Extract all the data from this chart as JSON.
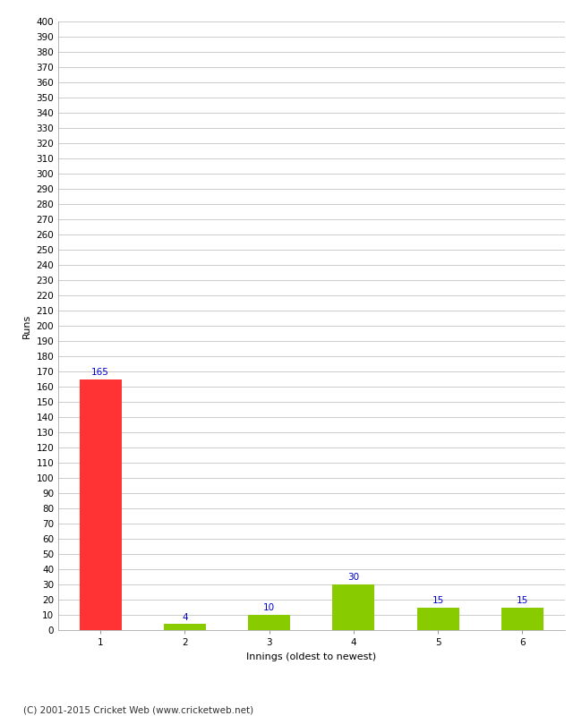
{
  "categories": [
    "1",
    "2",
    "3",
    "4",
    "5",
    "6"
  ],
  "values": [
    165,
    4,
    10,
    30,
    15,
    15
  ],
  "bar_colors": [
    "#ff3333",
    "#88cc00",
    "#88cc00",
    "#88cc00",
    "#88cc00",
    "#88cc00"
  ],
  "xlabel": "Innings (oldest to newest)",
  "ylabel": "Runs",
  "ylim": [
    0,
    400
  ],
  "yticks": [
    0,
    10,
    20,
    30,
    40,
    50,
    60,
    70,
    80,
    90,
    100,
    110,
    120,
    130,
    140,
    150,
    160,
    170,
    180,
    190,
    200,
    210,
    220,
    230,
    240,
    250,
    260,
    270,
    280,
    290,
    300,
    310,
    320,
    330,
    340,
    350,
    360,
    370,
    380,
    390,
    400
  ],
  "label_color": "#0000cc",
  "label_fontsize": 7.5,
  "axis_fontsize": 7.5,
  "xlabel_fontsize": 8,
  "ylabel_fontsize": 8,
  "footer_text": "(C) 2001-2015 Cricket Web (www.cricketweb.net)",
  "background_color": "#ffffff",
  "grid_color": "#cccccc",
  "bar_width": 0.5
}
